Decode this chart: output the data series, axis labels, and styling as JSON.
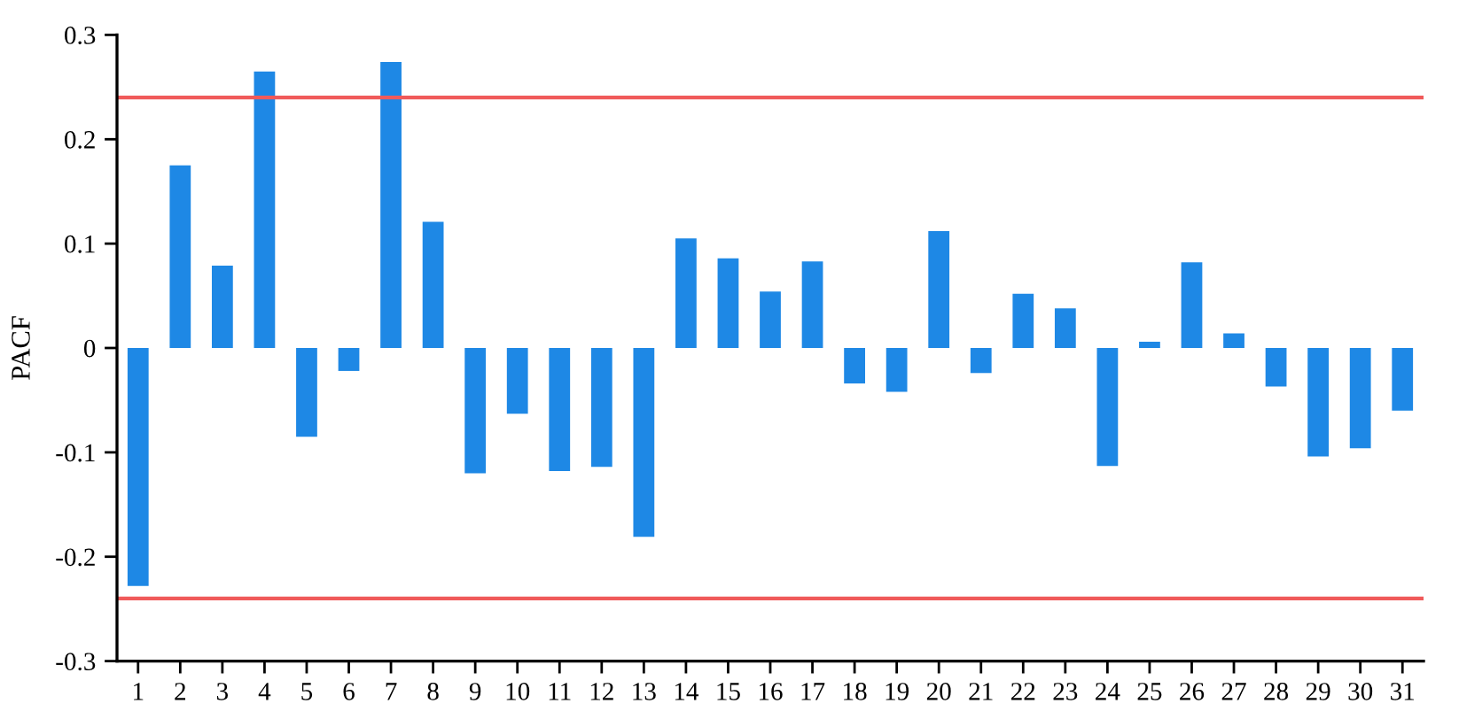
{
  "chart_data": {
    "type": "bar",
    "ylabel": "PACF",
    "categories": [
      "1",
      "2",
      "3",
      "4",
      "5",
      "6",
      "7",
      "8",
      "9",
      "10",
      "11",
      "12",
      "13",
      "14",
      "15",
      "16",
      "17",
      "18",
      "19",
      "20",
      "21",
      "22",
      "23",
      "24",
      "25",
      "26",
      "27",
      "28",
      "29",
      "30",
      "31"
    ],
    "values": [
      -0.228,
      0.175,
      0.079,
      0.265,
      -0.085,
      -0.022,
      0.274,
      0.121,
      -0.12,
      -0.063,
      -0.118,
      -0.114,
      -0.181,
      0.105,
      0.086,
      0.054,
      0.083,
      -0.034,
      -0.042,
      0.112,
      -0.024,
      0.052,
      0.038,
      -0.113,
      0.006,
      0.082,
      0.014,
      -0.037,
      -0.104,
      -0.096,
      -0.06
    ],
    "color": "#1e88e5",
    "ylim": [
      -0.3,
      0.3
    ],
    "yticks": [
      {
        "value": -0.3,
        "label": "-0.3"
      },
      {
        "value": -0.2,
        "label": "-0.2"
      },
      {
        "value": -0.1,
        "label": "-0.1"
      },
      0,
      0.1,
      0.2,
      0.3
    ],
    "ref_lines": [
      {
        "axis": "y",
        "value": 0.24,
        "color": "#f05a5a"
      },
      {
        "axis": "y",
        "value": -0.24,
        "color": "#f05a5a"
      }
    ],
    "grid": false,
    "legend": false
  }
}
